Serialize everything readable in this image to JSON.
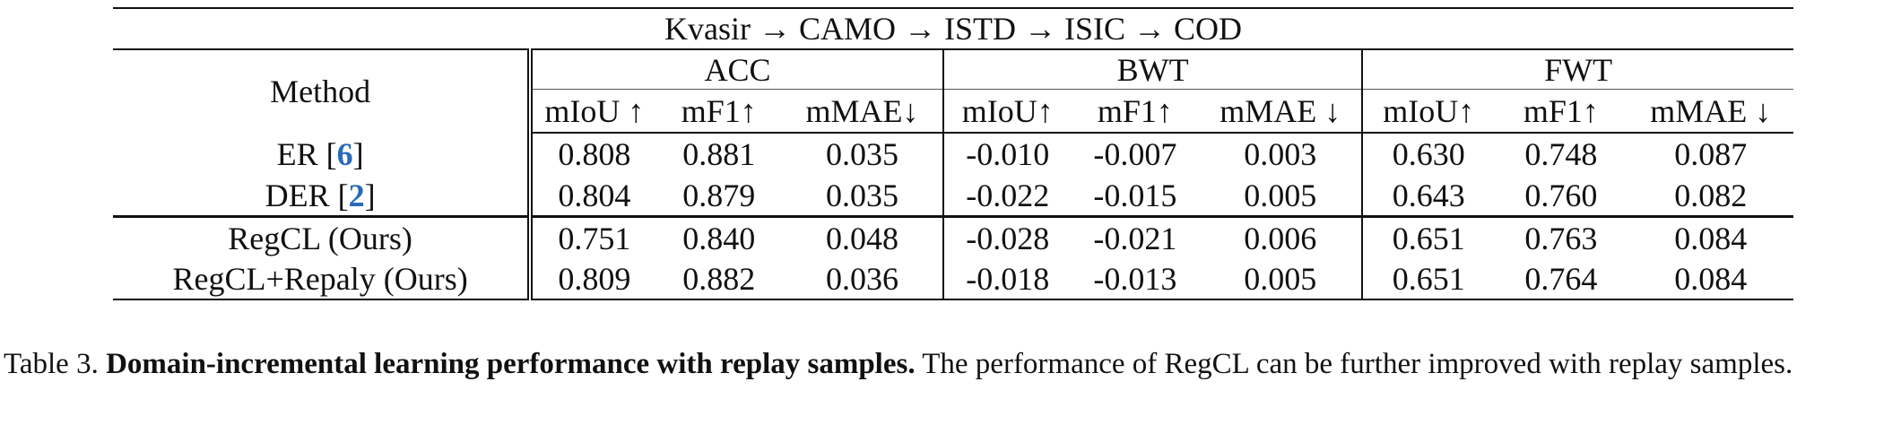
{
  "table": {
    "title": "Kvasir → CAMO → ISTD → ISIC → COD",
    "method_header": "Method",
    "groups": [
      "ACC",
      "BWT",
      "FWT"
    ],
    "metrics": [
      "mIoU ↑",
      "mF1↑",
      "mMAE↓",
      "mIoU↑",
      "mF1↑",
      "mMAE ↓",
      "mIoU↑",
      "mF1↑",
      "mMAE ↓"
    ],
    "rows": [
      {
        "name": "ER [",
        "ref": "6",
        "close": "]",
        "values": [
          "0.808",
          "0.881",
          "0.035",
          "-0.010",
          "-0.007",
          "0.003",
          "0.630",
          "0.748",
          "0.087"
        ]
      },
      {
        "name": "DER [",
        "ref": "2",
        "close": "]",
        "values": [
          "0.804",
          "0.879",
          "0.035",
          "-0.022",
          "-0.015",
          "0.005",
          "0.643",
          "0.760",
          "0.082"
        ]
      },
      {
        "name": "RegCL (Ours)",
        "ref": "",
        "close": "",
        "values": [
          "0.751",
          "0.840",
          "0.048",
          "-0.028",
          "-0.021",
          "0.006",
          "0.651",
          "0.763",
          "0.084"
        ]
      },
      {
        "name": "RegCL+Repaly (Ours)",
        "ref": "",
        "close": "",
        "values": [
          "0.809",
          "0.882",
          "0.036",
          "-0.018",
          "-0.013",
          "0.005",
          "0.651",
          "0.764",
          "0.084"
        ]
      }
    ]
  },
  "caption": {
    "label": "Table 3.",
    "title": "Domain-incremental learning performance with replay samples.",
    "text": "The performance of RegCL can be further improved with replay samples."
  }
}
